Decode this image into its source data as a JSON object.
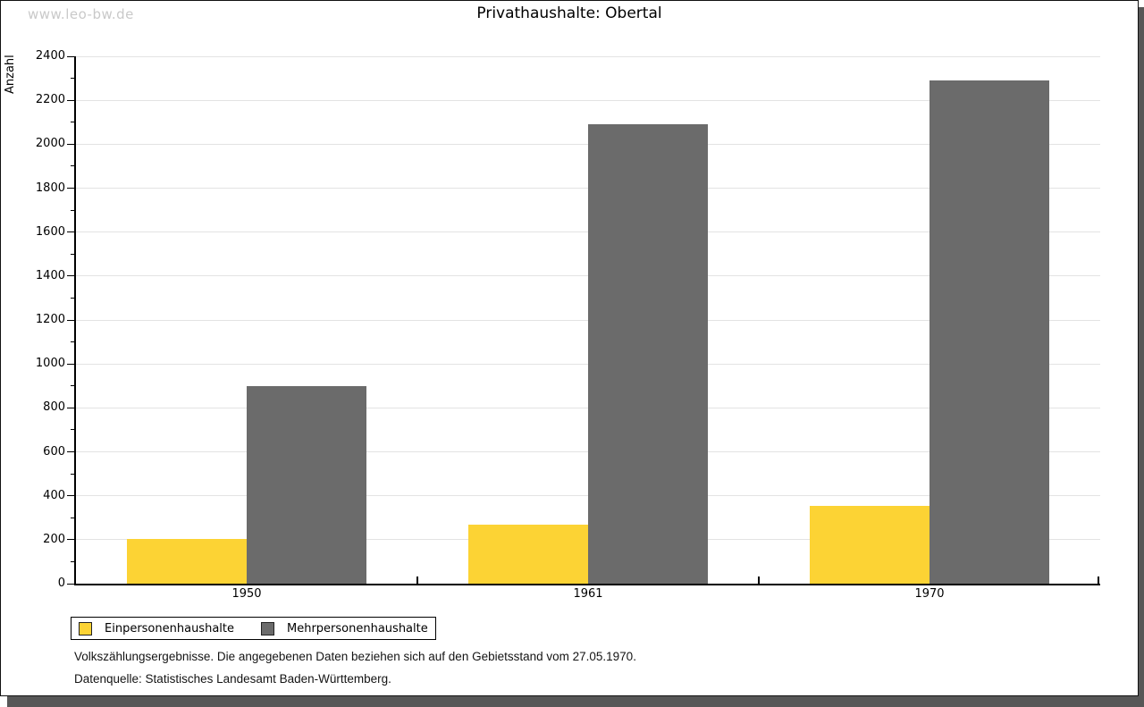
{
  "watermark": "www.leo-bw.de",
  "chart_data": {
    "type": "bar",
    "title": "Privathaushalte: Obertal",
    "ylabel": "Anzahl",
    "xlabel": "",
    "categories": [
      "1950",
      "1961",
      "1970"
    ],
    "series": [
      {
        "name": "Einpersonenhaushalte",
        "color": "#fcd334",
        "values": [
          205,
          270,
          355
        ]
      },
      {
        "name": "Mehrpersonenhaushalte",
        "color": "#6b6b6b",
        "values": [
          900,
          2090,
          2290
        ]
      }
    ],
    "ylim": [
      0,
      2400
    ],
    "ytick_step": 200,
    "minor_tick_step": 100,
    "grid": true,
    "legend_position": "bottom-left"
  },
  "footer": {
    "line1": "Volkszählungsergebnisse. Die angegebenen Daten beziehen sich auf den Gebietsstand vom 27.05.1970.",
    "line2": "Datenquelle: Statistisches Landesamt Baden-Württemberg."
  }
}
